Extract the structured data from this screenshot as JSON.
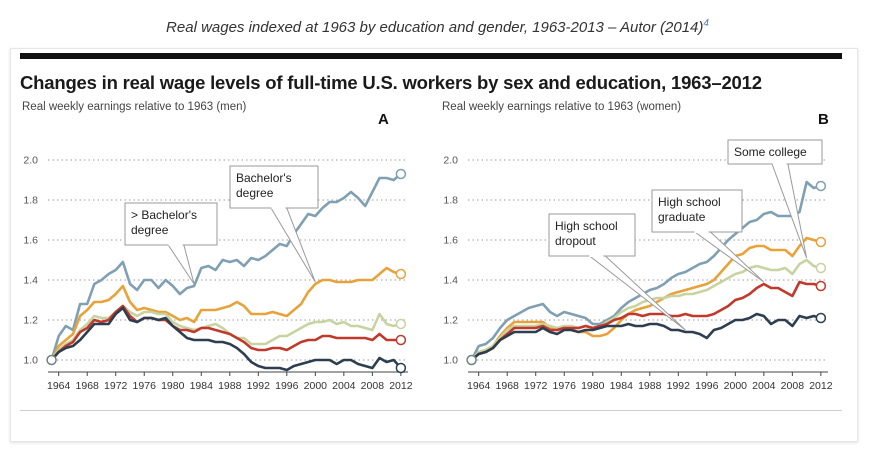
{
  "caption": {
    "text": "Real wages indexed at 1963 by education and gender, 1963-2013 – Autor (2014)",
    "footnote": "4"
  },
  "title": "Changes in real wage levels of full-time U.S. workers by sex and education, 1963–2012",
  "colors": {
    "bachelor_plus": "#7f9fb3",
    "bachelor": "#e8a23a",
    "some_college": "#c7d3a0",
    "hs_graduate": "#c0392b",
    "hs_dropout": "#2c3e50",
    "grid": "#9a9a9a"
  },
  "chart_data": [
    {
      "type": "line",
      "panel": "A",
      "subtitle": "Real weekly earnings relative to 1963 (men)",
      "x_ticks": [
        1964,
        1968,
        1972,
        1976,
        1980,
        1984,
        1988,
        1992,
        1996,
        2000,
        2004,
        2008,
        2012
      ],
      "y_ticks": [
        "1.0",
        "1.2",
        "1.4",
        "1.6",
        "1.8",
        "2.0"
      ],
      "ylim": [
        0.95,
        2.05
      ],
      "xlim": [
        1962.5,
        2013
      ],
      "grid": true,
      "x": [
        1963,
        1964,
        1965,
        1966,
        1967,
        1968,
        1969,
        1970,
        1971,
        1972,
        1973,
        1974,
        1975,
        1976,
        1977,
        1978,
        1979,
        1980,
        1981,
        1982,
        1983,
        1984,
        1985,
        1986,
        1987,
        1988,
        1989,
        1990,
        1991,
        1992,
        1993,
        1994,
        1995,
        1996,
        1997,
        1998,
        1999,
        2000,
        2001,
        2002,
        2003,
        2004,
        2005,
        2006,
        2007,
        2008,
        2009,
        2010,
        2011,
        2012
      ],
      "series": [
        {
          "key": "bachelor_plus",
          "values": [
            1.0,
            1.12,
            1.17,
            1.15,
            1.28,
            1.28,
            1.38,
            1.4,
            1.43,
            1.45,
            1.49,
            1.38,
            1.35,
            1.4,
            1.4,
            1.36,
            1.4,
            1.37,
            1.33,
            1.36,
            1.37,
            1.46,
            1.47,
            1.45,
            1.5,
            1.49,
            1.5,
            1.47,
            1.51,
            1.5,
            1.52,
            1.55,
            1.58,
            1.57,
            1.63,
            1.68,
            1.73,
            1.72,
            1.76,
            1.79,
            1.79,
            1.81,
            1.84,
            1.81,
            1.77,
            1.84,
            1.91,
            1.91,
            1.9,
            1.93
          ]
        },
        {
          "key": "bachelor",
          "values": [
            1.0,
            1.07,
            1.1,
            1.13,
            1.22,
            1.25,
            1.29,
            1.29,
            1.3,
            1.33,
            1.37,
            1.29,
            1.25,
            1.26,
            1.25,
            1.24,
            1.24,
            1.22,
            1.2,
            1.21,
            1.19,
            1.25,
            1.25,
            1.25,
            1.26,
            1.27,
            1.29,
            1.27,
            1.23,
            1.23,
            1.23,
            1.24,
            1.23,
            1.22,
            1.25,
            1.28,
            1.34,
            1.38,
            1.4,
            1.4,
            1.39,
            1.39,
            1.39,
            1.4,
            1.4,
            1.4,
            1.43,
            1.46,
            1.44,
            1.43
          ]
        },
        {
          "key": "some_college",
          "values": [
            1.0,
            1.05,
            1.08,
            1.1,
            1.15,
            1.18,
            1.22,
            1.21,
            1.21,
            1.24,
            1.27,
            1.24,
            1.22,
            1.24,
            1.24,
            1.23,
            1.23,
            1.19,
            1.17,
            1.16,
            1.15,
            1.16,
            1.17,
            1.18,
            1.16,
            1.13,
            1.11,
            1.11,
            1.08,
            1.08,
            1.08,
            1.1,
            1.12,
            1.12,
            1.14,
            1.16,
            1.18,
            1.19,
            1.19,
            1.2,
            1.18,
            1.19,
            1.17,
            1.17,
            1.16,
            1.15,
            1.23,
            1.18,
            1.17,
            1.18
          ]
        },
        {
          "key": "hs_graduate",
          "values": [
            1.0,
            1.04,
            1.07,
            1.09,
            1.14,
            1.16,
            1.2,
            1.19,
            1.2,
            1.24,
            1.27,
            1.22,
            1.19,
            1.21,
            1.21,
            1.2,
            1.2,
            1.17,
            1.15,
            1.15,
            1.14,
            1.16,
            1.16,
            1.15,
            1.14,
            1.13,
            1.11,
            1.09,
            1.06,
            1.05,
            1.05,
            1.06,
            1.06,
            1.05,
            1.07,
            1.09,
            1.1,
            1.1,
            1.12,
            1.12,
            1.11,
            1.11,
            1.11,
            1.11,
            1.11,
            1.1,
            1.13,
            1.1,
            1.1,
            1.1
          ]
        },
        {
          "key": "hs_dropout",
          "values": [
            1.0,
            1.04,
            1.06,
            1.07,
            1.1,
            1.14,
            1.18,
            1.18,
            1.18,
            1.23,
            1.26,
            1.2,
            1.19,
            1.21,
            1.21,
            1.2,
            1.21,
            1.17,
            1.14,
            1.11,
            1.1,
            1.1,
            1.1,
            1.09,
            1.09,
            1.08,
            1.06,
            1.03,
            0.99,
            0.97,
            0.96,
            0.96,
            0.96,
            0.95,
            0.97,
            0.98,
            0.99,
            1.0,
            1.0,
            1.0,
            0.98,
            1.0,
            1.0,
            0.98,
            0.97,
            0.96,
            1.01,
            0.99,
            1.0,
            0.96
          ]
        }
      ],
      "annotations": [
        {
          "text": [
            "> Bachelor's",
            "degree"
          ],
          "series": "bachelor_plus",
          "year": 1983
        },
        {
          "text": [
            "Bachelor's",
            "degree"
          ],
          "series": "bachelor",
          "year": 2000
        }
      ]
    },
    {
      "type": "line",
      "panel": "B",
      "subtitle": "Real weekly earnings relative to 1963 (women)",
      "x_ticks": [
        1964,
        1968,
        1972,
        1976,
        1980,
        1984,
        1988,
        1992,
        1996,
        2000,
        2004,
        2008,
        2012
      ],
      "y_ticks": [
        "1.0",
        "1.2",
        "1.4",
        "1.6",
        "1.8",
        "2.0"
      ],
      "ylim": [
        0.95,
        2.05
      ],
      "xlim": [
        1962.5,
        2013
      ],
      "grid": true,
      "x": [
        1963,
        1964,
        1965,
        1966,
        1967,
        1968,
        1969,
        1970,
        1971,
        1972,
        1973,
        1974,
        1975,
        1976,
        1977,
        1978,
        1979,
        1980,
        1981,
        1982,
        1983,
        1984,
        1985,
        1986,
        1987,
        1988,
        1989,
        1990,
        1991,
        1992,
        1993,
        1994,
        1995,
        1996,
        1997,
        1998,
        1999,
        2000,
        2001,
        2002,
        2003,
        2004,
        2005,
        2006,
        2007,
        2008,
        2009,
        2010,
        2011,
        2012
      ],
      "series": [
        {
          "key": "bachelor_plus",
          "values": [
            1.0,
            1.07,
            1.08,
            1.11,
            1.16,
            1.2,
            1.22,
            1.24,
            1.26,
            1.27,
            1.28,
            1.24,
            1.22,
            1.24,
            1.23,
            1.22,
            1.21,
            1.18,
            1.18,
            1.2,
            1.22,
            1.26,
            1.29,
            1.31,
            1.33,
            1.35,
            1.36,
            1.38,
            1.41,
            1.43,
            1.44,
            1.46,
            1.48,
            1.49,
            1.52,
            1.56,
            1.6,
            1.63,
            1.66,
            1.69,
            1.7,
            1.73,
            1.74,
            1.72,
            1.72,
            1.72,
            1.74,
            1.89,
            1.86,
            1.87
          ]
        },
        {
          "key": "bachelor",
          "values": [
            1.0,
            1.04,
            1.05,
            1.07,
            1.12,
            1.16,
            1.19,
            1.19,
            1.19,
            1.19,
            1.19,
            1.16,
            1.15,
            1.16,
            1.15,
            1.14,
            1.14,
            1.12,
            1.12,
            1.13,
            1.16,
            1.2,
            1.23,
            1.25,
            1.26,
            1.27,
            1.29,
            1.31,
            1.33,
            1.34,
            1.35,
            1.36,
            1.37,
            1.38,
            1.4,
            1.44,
            1.48,
            1.52,
            1.53,
            1.56,
            1.57,
            1.57,
            1.55,
            1.55,
            1.55,
            1.52,
            1.57,
            1.61,
            1.6,
            1.59
          ]
        },
        {
          "key": "some_college",
          "values": [
            1.0,
            1.04,
            1.05,
            1.07,
            1.11,
            1.15,
            1.17,
            1.17,
            1.17,
            1.17,
            1.18,
            1.17,
            1.16,
            1.17,
            1.17,
            1.16,
            1.17,
            1.16,
            1.17,
            1.19,
            1.21,
            1.24,
            1.26,
            1.27,
            1.29,
            1.3,
            1.31,
            1.31,
            1.32,
            1.32,
            1.33,
            1.33,
            1.34,
            1.35,
            1.37,
            1.39,
            1.41,
            1.43,
            1.44,
            1.46,
            1.47,
            1.46,
            1.45,
            1.45,
            1.46,
            1.43,
            1.48,
            1.5,
            1.47,
            1.46
          ]
        },
        {
          "key": "hs_graduate",
          "values": [
            1.0,
            1.03,
            1.04,
            1.06,
            1.1,
            1.13,
            1.16,
            1.16,
            1.16,
            1.16,
            1.17,
            1.15,
            1.15,
            1.16,
            1.16,
            1.16,
            1.17,
            1.16,
            1.17,
            1.18,
            1.2,
            1.21,
            1.23,
            1.23,
            1.22,
            1.23,
            1.23,
            1.23,
            1.22,
            1.22,
            1.23,
            1.22,
            1.22,
            1.22,
            1.23,
            1.25,
            1.27,
            1.3,
            1.31,
            1.33,
            1.36,
            1.38,
            1.36,
            1.36,
            1.34,
            1.32,
            1.39,
            1.38,
            1.38,
            1.37
          ]
        },
        {
          "key": "hs_dropout",
          "values": [
            1.0,
            1.03,
            1.04,
            1.06,
            1.1,
            1.12,
            1.14,
            1.14,
            1.14,
            1.14,
            1.16,
            1.14,
            1.13,
            1.15,
            1.15,
            1.14,
            1.15,
            1.15,
            1.16,
            1.17,
            1.17,
            1.17,
            1.18,
            1.17,
            1.17,
            1.18,
            1.18,
            1.17,
            1.15,
            1.15,
            1.14,
            1.14,
            1.13,
            1.11,
            1.15,
            1.16,
            1.18,
            1.2,
            1.2,
            1.21,
            1.23,
            1.22,
            1.18,
            1.2,
            1.2,
            1.17,
            1.22,
            1.21,
            1.22,
            1.21
          ]
        }
      ],
      "annotations": [
        {
          "text": [
            "High school",
            "dropout"
          ],
          "series": "hs_dropout",
          "year": 1993
        },
        {
          "text": [
            "High school",
            "graduate"
          ],
          "series": "hs_graduate",
          "year": 2004
        },
        {
          "text": [
            "Some college"
          ],
          "series": "some_college",
          "year": 2010
        }
      ]
    }
  ]
}
